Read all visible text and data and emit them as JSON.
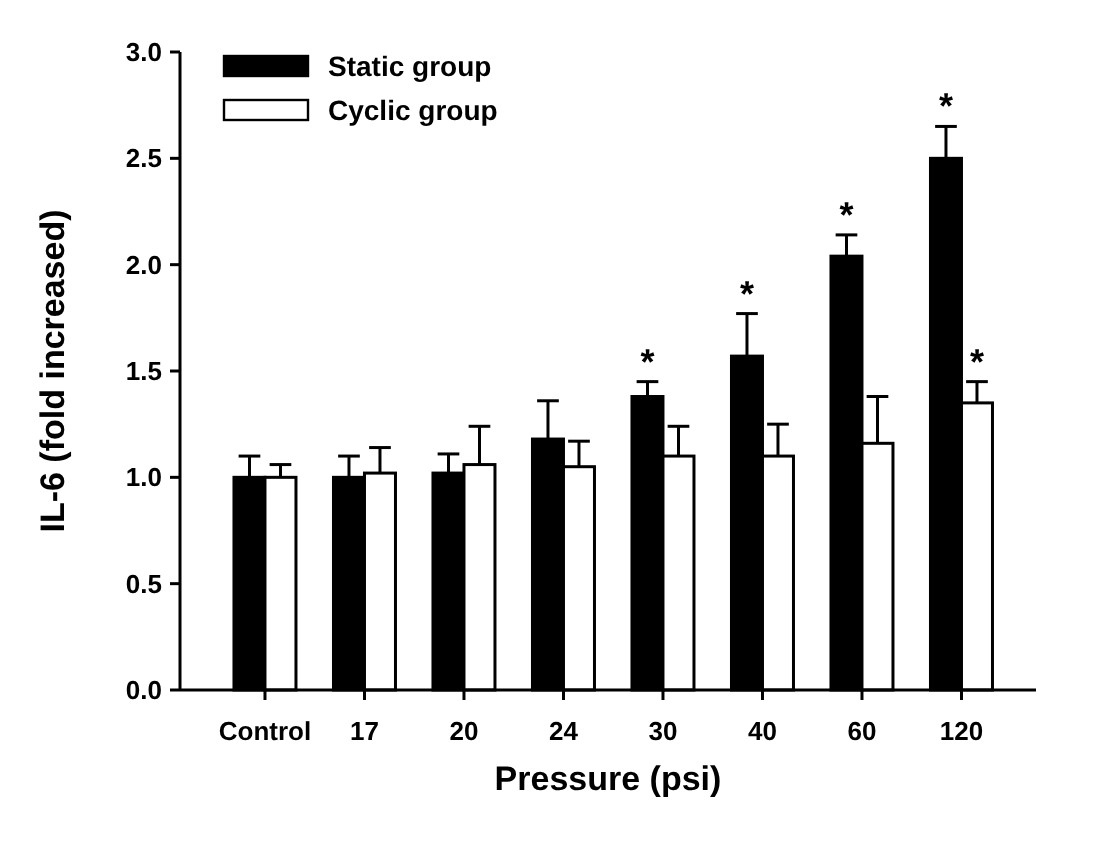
{
  "chart_data": {
    "type": "bar",
    "xlabel": "Pressure (psi)",
    "ylabel": "IL-6 (fold increased)",
    "categories": [
      "Control",
      "17",
      "20",
      "24",
      "30",
      "40",
      "60",
      "120"
    ],
    "series": [
      {
        "name": "Static group",
        "color": "#000000",
        "values": [
          1.0,
          1.0,
          1.02,
          1.18,
          1.38,
          1.57,
          2.04,
          2.5
        ],
        "errors": [
          0.1,
          0.1,
          0.09,
          0.18,
          0.07,
          0.2,
          0.1,
          0.15
        ]
      },
      {
        "name": "Cyclic group",
        "color": "#ffffff",
        "values": [
          1.0,
          1.02,
          1.06,
          1.05,
          1.1,
          1.1,
          1.16,
          1.35
        ],
        "errors": [
          0.06,
          0.12,
          0.18,
          0.12,
          0.14,
          0.15,
          0.22,
          0.1
        ]
      }
    ],
    "ylim": [
      0,
      3.0
    ],
    "yticks": [
      {
        "value": 0,
        "label": "0.0"
      },
      {
        "value": 0.5,
        "label": "0.5"
      },
      {
        "value": 1,
        "label": "1.0"
      },
      {
        "value": 1.5,
        "label": "1.5"
      },
      {
        "value": 2,
        "label": "2.0"
      },
      {
        "value": 2.5,
        "label": "2.5"
      },
      {
        "value": 3,
        "label": "3.0"
      }
    ],
    "legend": "top left",
    "grid": false,
    "annotations": [
      {
        "text": "*",
        "x": "30",
        "y": 1.38
      },
      {
        "text": "*",
        "x": "40",
        "y": 1.57
      },
      {
        "text": "*",
        "x": "60",
        "y": 2.04
      },
      {
        "text": "*",
        "x": "120",
        "y": 2.5
      },
      {
        "text": "*",
        "x": "120",
        "y": 1.35
      }
    ]
  }
}
